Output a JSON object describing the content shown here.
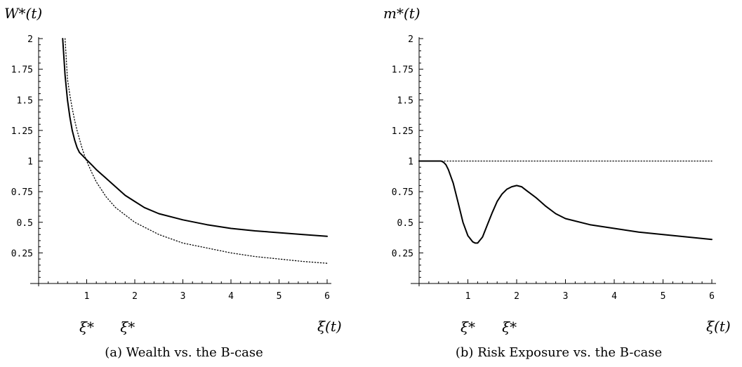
{
  "chart_data": [
    {
      "type": "line",
      "ylabel": "W*(t)",
      "xlabel": "ξ(t)",
      "caption": "(a) Wealth vs. the B-case",
      "markers": [
        "ξ*",
        "ξ*"
      ],
      "marker_x": [
        1.0,
        1.85
      ],
      "xlim": [
        0,
        6
      ],
      "ylim": [
        0,
        2
      ],
      "xticks": [
        "1",
        "2",
        "3",
        "4",
        "5",
        "6"
      ],
      "yticks": [
        "0.25",
        "0.5",
        "0.75",
        "1",
        "1.25",
        "1.5",
        "1.75",
        "2"
      ],
      "series": [
        {
          "style": "solid",
          "x": [
            0.5,
            0.55,
            0.6,
            0.65,
            0.7,
            0.75,
            0.8,
            0.85,
            0.9,
            0.95,
            1.0,
            1.1,
            1.2,
            1.4,
            1.6,
            1.8,
            2.0,
            2.2,
            2.5,
            3.0,
            3.5,
            4.0,
            4.5,
            5.0,
            5.5,
            6.0
          ],
          "y": [
            2.0,
            1.7,
            1.5,
            1.36,
            1.25,
            1.17,
            1.11,
            1.07,
            1.05,
            1.03,
            1.01,
            0.97,
            0.93,
            0.86,
            0.79,
            0.72,
            0.67,
            0.62,
            0.57,
            0.52,
            0.48,
            0.45,
            0.43,
            0.415,
            0.4,
            0.385
          ]
        },
        {
          "style": "dotted",
          "x": [
            0.55,
            0.6,
            0.65,
            0.7,
            0.75,
            0.8,
            0.85,
            0.9,
            0.95,
            1.0,
            1.1,
            1.2,
            1.4,
            1.6,
            1.8,
            2.0,
            2.5,
            3.0,
            3.5,
            4.0,
            4.5,
            5.0,
            5.5,
            6.0
          ],
          "y": [
            2.0,
            1.67,
            1.54,
            1.43,
            1.33,
            1.25,
            1.18,
            1.11,
            1.05,
            1.0,
            0.91,
            0.83,
            0.71,
            0.62,
            0.56,
            0.5,
            0.4,
            0.33,
            0.29,
            0.25,
            0.22,
            0.2,
            0.18,
            0.165
          ]
        }
      ]
    },
    {
      "type": "line",
      "ylabel": "m*(t)",
      "xlabel": "ξ(t)",
      "caption": "(b) Risk Exposure vs. the B-case",
      "markers": [
        "ξ*",
        "ξ*"
      ],
      "marker_x": [
        1.0,
        1.85
      ],
      "xlim": [
        0,
        6
      ],
      "ylim": [
        0,
        2
      ],
      "xticks": [
        "1",
        "2",
        "3",
        "4",
        "5",
        "6"
      ],
      "yticks": [
        "0.25",
        "0.5",
        "0.75",
        "1",
        "1.25",
        "1.5",
        "1.75",
        "2"
      ],
      "series": [
        {
          "style": "solid",
          "x": [
            0.0,
            0.3,
            0.45,
            0.5,
            0.55,
            0.6,
            0.7,
            0.8,
            0.9,
            1.0,
            1.1,
            1.15,
            1.2,
            1.3,
            1.4,
            1.5,
            1.6,
            1.7,
            1.8,
            1.9,
            2.0,
            2.1,
            2.2,
            2.4,
            2.6,
            2.8,
            3.0,
            3.5,
            4.0,
            4.5,
            5.0,
            5.5,
            6.0
          ],
          "y": [
            1.0,
            1.0,
            1.0,
            0.99,
            0.97,
            0.93,
            0.82,
            0.66,
            0.5,
            0.39,
            0.34,
            0.33,
            0.33,
            0.38,
            0.48,
            0.58,
            0.67,
            0.73,
            0.77,
            0.79,
            0.8,
            0.79,
            0.76,
            0.7,
            0.63,
            0.57,
            0.53,
            0.48,
            0.45,
            0.42,
            0.4,
            0.38,
            0.36
          ]
        },
        {
          "style": "dotted",
          "x": [
            0.0,
            6.0
          ],
          "y": [
            1.0,
            1.0
          ]
        }
      ]
    }
  ]
}
